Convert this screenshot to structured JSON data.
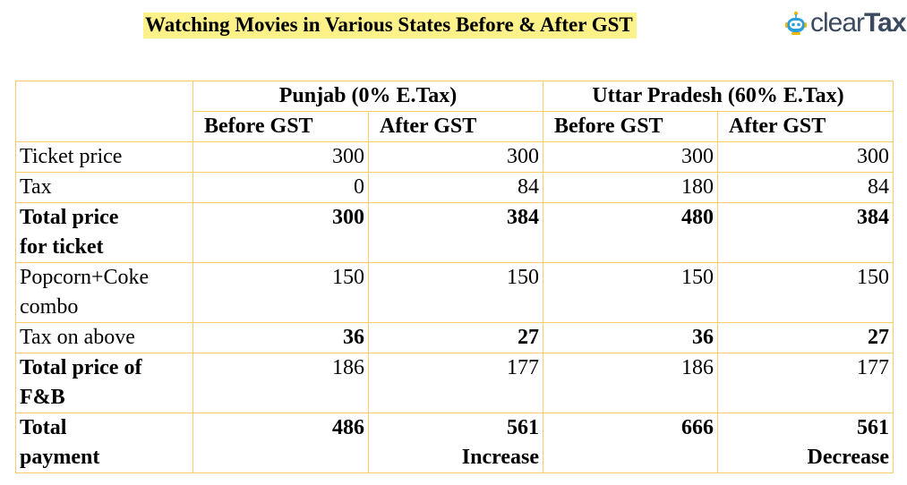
{
  "title": "Watching Movies in Various States Before & After GST",
  "logo": {
    "icon": "cleartax-robot-icon",
    "text_light": "clear",
    "text_heavy": "Tax",
    "color": "#3b4a60",
    "icon_color": "#2a9fd8"
  },
  "table": {
    "groups": [
      "Punjab (0% E.Tax)",
      "Uttar Pradesh (60% E.Tax)"
    ],
    "subheaders": [
      "Before GST",
      "After GST",
      "Before GST",
      "After GST"
    ],
    "rows": [
      {
        "label": [
          "Ticket price"
        ],
        "label_bold": false,
        "values_bold": false,
        "values": [
          "300",
          "300",
          "300",
          "300"
        ],
        "notes": [
          "",
          "",
          "",
          ""
        ]
      },
      {
        "label": [
          "Tax"
        ],
        "label_bold": false,
        "values_bold": false,
        "values": [
          "0",
          "84",
          "180",
          "84"
        ],
        "notes": [
          "",
          "",
          "",
          ""
        ]
      },
      {
        "label": [
          "Total price",
          "for ticket"
        ],
        "label_bold": true,
        "values_bold": true,
        "values": [
          "300",
          "384",
          "480",
          "384"
        ],
        "notes": [
          "",
          "",
          "",
          ""
        ]
      },
      {
        "label": [
          "Popcorn+Coke",
          "combo"
        ],
        "label_bold": false,
        "values_bold": false,
        "values": [
          "150",
          "150",
          "150",
          "150"
        ],
        "notes": [
          "",
          "",
          "",
          ""
        ]
      },
      {
        "label": [
          "Tax on above"
        ],
        "label_bold": false,
        "values_bold": true,
        "values": [
          "36",
          "27",
          "36",
          "27"
        ],
        "notes": [
          "",
          "",
          "",
          ""
        ]
      },
      {
        "label": [
          "Total price of",
          "F&B"
        ],
        "label_bold": true,
        "values_bold": false,
        "values": [
          "186",
          "177",
          "186",
          "177"
        ],
        "notes": [
          "",
          "",
          "",
          ""
        ]
      },
      {
        "label": [
          "Total",
          "payment"
        ],
        "label_bold": true,
        "values_bold": true,
        "values": [
          "486",
          "561",
          "666",
          "561"
        ],
        "notes": [
          "",
          "Increase",
          "",
          "Decrease"
        ]
      }
    ]
  }
}
